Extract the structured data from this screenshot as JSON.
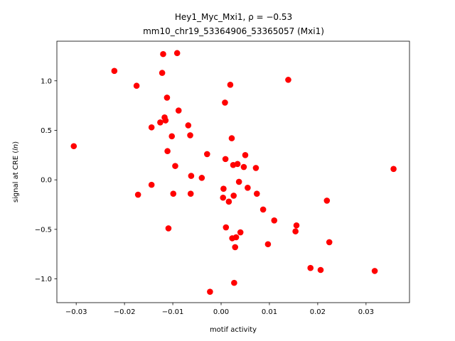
{
  "chart_data": {
    "type": "scatter",
    "title_line1": "Hey1_Myc_Mxi1, ρ = −0.53",
    "title_line2": "mm10_chr19_53364906_53365057 (Mxi1)",
    "xlabel": "motif activity",
    "ylabel": "signal at CRE (ln)",
    "xlim": [
      -0.034,
      0.039
    ],
    "ylim": [
      -1.24,
      1.4
    ],
    "xticks": [
      -0.03,
      -0.02,
      -0.01,
      0.0,
      0.01,
      0.02,
      0.03
    ],
    "xtick_labels": [
      "−0.03",
      "−0.02",
      "−0.01",
      "0.00",
      "0.01",
      "0.02",
      "0.03"
    ],
    "yticks": [
      -1.0,
      -0.5,
      0.0,
      0.5,
      1.0
    ],
    "ytick_labels": [
      "−1.0",
      "−0.5",
      "0.0",
      "0.5",
      "1.0"
    ],
    "grid": false,
    "marker_color": "#ff0000",
    "points": [
      {
        "x": -0.0305,
        "y": 0.34
      },
      {
        "x": -0.0221,
        "y": 1.1
      },
      {
        "x": -0.0175,
        "y": 0.95
      },
      {
        "x": -0.0172,
        "y": -0.15
      },
      {
        "x": -0.0144,
        "y": 0.53
      },
      {
        "x": -0.0144,
        "y": -0.05
      },
      {
        "x": -0.0126,
        "y": 0.58
      },
      {
        "x": -0.0122,
        "y": 1.08
      },
      {
        "x": -0.012,
        "y": 1.27
      },
      {
        "x": -0.0117,
        "y": 0.63
      },
      {
        "x": -0.0115,
        "y": 0.6
      },
      {
        "x": -0.0112,
        "y": 0.83
      },
      {
        "x": -0.0111,
        "y": 0.29
      },
      {
        "x": -0.0109,
        "y": -0.49
      },
      {
        "x": -0.0102,
        "y": 0.44
      },
      {
        "x": -0.0099,
        "y": -0.14
      },
      {
        "x": -0.0095,
        "y": 0.14
      },
      {
        "x": -0.0091,
        "y": 1.28
      },
      {
        "x": -0.0088,
        "y": 0.7
      },
      {
        "x": -0.0068,
        "y": 0.55
      },
      {
        "x": -0.0064,
        "y": 0.45
      },
      {
        "x": -0.0063,
        "y": -0.14
      },
      {
        "x": -0.0062,
        "y": 0.04
      },
      {
        "x": -0.004,
        "y": 0.02
      },
      {
        "x": -0.0029,
        "y": 0.26
      },
      {
        "x": -0.0023,
        "y": -1.13
      },
      {
        "x": 0.0004,
        "y": -0.18
      },
      {
        "x": 0.0005,
        "y": -0.09
      },
      {
        "x": 0.0008,
        "y": 0.78
      },
      {
        "x": 0.0009,
        "y": 0.21
      },
      {
        "x": 0.001,
        "y": -0.48
      },
      {
        "x": 0.0016,
        "y": -0.22
      },
      {
        "x": 0.0019,
        "y": 0.96
      },
      {
        "x": 0.0022,
        "y": 0.42
      },
      {
        "x": 0.0023,
        "y": -0.59
      },
      {
        "x": 0.0025,
        "y": 0.15
      },
      {
        "x": 0.0026,
        "y": -0.16
      },
      {
        "x": 0.0027,
        "y": -1.04
      },
      {
        "x": 0.0029,
        "y": -0.68
      },
      {
        "x": 0.0031,
        "y": -0.58
      },
      {
        "x": 0.0034,
        "y": 0.16
      },
      {
        "x": 0.0037,
        "y": -0.02
      },
      {
        "x": 0.004,
        "y": -0.53
      },
      {
        "x": 0.0047,
        "y": 0.13
      },
      {
        "x": 0.005,
        "y": 0.25
      },
      {
        "x": 0.0055,
        "y": -0.08
      },
      {
        "x": 0.0072,
        "y": 0.12
      },
      {
        "x": 0.0074,
        "y": -0.14
      },
      {
        "x": 0.0087,
        "y": -0.3
      },
      {
        "x": 0.0097,
        "y": -0.65
      },
      {
        "x": 0.011,
        "y": -0.41
      },
      {
        "x": 0.0139,
        "y": 1.01
      },
      {
        "x": 0.0154,
        "y": -0.52
      },
      {
        "x": 0.0156,
        "y": -0.46
      },
      {
        "x": 0.0185,
        "y": -0.89
      },
      {
        "x": 0.0206,
        "y": -0.91
      },
      {
        "x": 0.0219,
        "y": -0.21
      },
      {
        "x": 0.0224,
        "y": -0.63
      },
      {
        "x": 0.0318,
        "y": -0.92
      },
      {
        "x": 0.0357,
        "y": 0.11
      }
    ]
  }
}
